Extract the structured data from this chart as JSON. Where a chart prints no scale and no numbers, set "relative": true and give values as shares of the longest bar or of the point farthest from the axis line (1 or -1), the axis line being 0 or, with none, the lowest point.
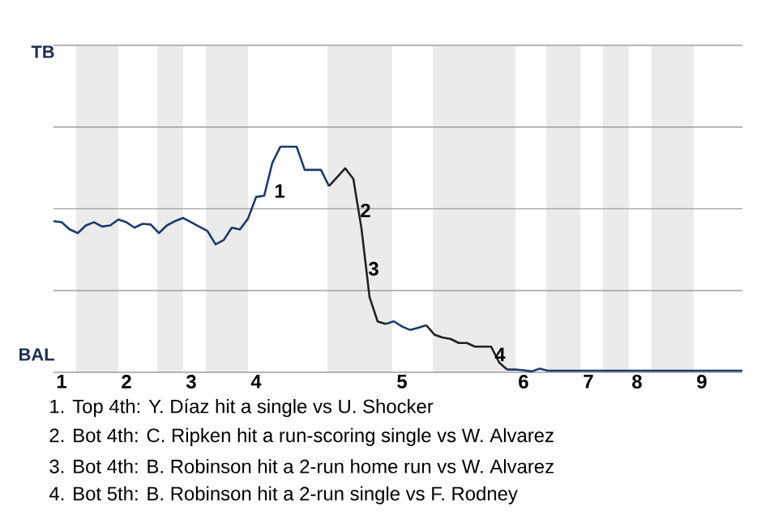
{
  "chart_data": {
    "type": "line",
    "relative": true,
    "categories": [
      null,
      "1",
      null,
      null,
      null,
      null,
      null,
      null,
      null,
      "2",
      null,
      null,
      null,
      null,
      null,
      null,
      null,
      "3",
      null,
      null,
      null,
      null,
      null,
      null,
      null,
      "4",
      null,
      null,
      null,
      null,
      null,
      null,
      null,
      null,
      null,
      null,
      null,
      null,
      null,
      null,
      null,
      null,
      null,
      "5",
      null,
      null,
      null,
      null,
      null,
      null,
      null,
      null,
      null,
      null,
      null,
      null,
      null,
      null,
      "6",
      null,
      null,
      null,
      null,
      null,
      null,
      null,
      "7",
      null,
      null,
      null,
      null,
      null,
      "8",
      null,
      null,
      null,
      null,
      null,
      null,
      null,
      "9",
      null,
      null,
      null,
      null,
      null
    ],
    "marker": "none",
    "line_style": "solid",
    "ref_lines": [
      {
        "axis": "y",
        "value": 0.362,
        "color": "#9f9f9f"
      },
      {
        "axis": "y",
        "value": 0.725,
        "color": "#9f9f9f"
      },
      {
        "axis": "y",
        "value": 1.087,
        "color": "#9f9f9f"
      },
      {
        "axis": "y",
        "value": 1.449,
        "color": "#9f9f9f"
      }
    ],
    "series": [
      {
        "color": "#1b3a6b",
        "values": [
          0.67,
          0.665,
          0.633,
          0.617,
          0.651,
          0.665,
          0.646,
          0.651,
          0.677,
          0.665,
          0.641,
          0.658,
          0.655,
          0.617,
          0.651,
          0.67,
          0.684,
          0.665,
          0.645,
          0.626,
          0.567,
          0.586,
          0.641,
          0.633,
          0.681,
          0.777,
          0.783,
          0.928,
          1,
          1,
          1,
          0.897,
          0.897,
          0.897,
          0.825,
          null,
          null,
          null,
          null,
          null,
          null,
          null,
          null,
          null,
          null,
          null,
          null,
          null,
          null,
          null,
          null,
          null,
          null,
          null,
          null,
          null,
          null,
          null,
          null,
          null,
          null,
          null,
          null,
          null,
          null,
          null,
          null,
          null,
          null,
          null,
          null,
          null,
          null,
          null,
          null,
          null,
          null,
          null,
          null,
          null,
          null,
          null,
          null,
          null,
          null,
          null
        ]
      },
      {
        "color": "#222222",
        "values": [
          null,
          null,
          null,
          null,
          null,
          null,
          null,
          null,
          null,
          null,
          null,
          null,
          null,
          null,
          null,
          null,
          null,
          null,
          null,
          null,
          null,
          null,
          null,
          null,
          null,
          null,
          null,
          null,
          null,
          null,
          null,
          null,
          null,
          null,
          0.825,
          0.865,
          0.904,
          0.857,
          0.638,
          0.333,
          0.225,
          0.214,
          null,
          null,
          null,
          null,
          null,
          null,
          null,
          null,
          null,
          null,
          null,
          null,
          null,
          null,
          null,
          null,
          null,
          null,
          null,
          null,
          null,
          null,
          null,
          null,
          null,
          null,
          null,
          null,
          null,
          null,
          null,
          null,
          null,
          null,
          null,
          null,
          null,
          null,
          null,
          null,
          null,
          null,
          null,
          null
        ]
      },
      {
        "color": "#1b3a6b",
        "values": [
          null,
          null,
          null,
          null,
          null,
          null,
          null,
          null,
          null,
          null,
          null,
          null,
          null,
          null,
          null,
          null,
          null,
          null,
          null,
          null,
          null,
          null,
          null,
          null,
          null,
          null,
          null,
          null,
          null,
          null,
          null,
          null,
          null,
          null,
          null,
          null,
          null,
          null,
          null,
          null,
          null,
          0.214,
          0.226,
          0.203,
          0.188,
          0.197,
          0.209,
          null,
          null,
          null,
          null,
          null,
          null,
          null,
          null,
          null,
          null,
          null,
          null,
          null,
          null,
          null,
          null,
          null,
          null,
          null,
          null,
          null,
          null,
          null,
          null,
          null,
          null,
          null,
          null,
          null,
          null,
          null,
          null,
          null,
          null,
          null,
          null,
          null,
          null,
          null
        ]
      },
      {
        "color": "#222222",
        "values": [
          null,
          null,
          null,
          null,
          null,
          null,
          null,
          null,
          null,
          null,
          null,
          null,
          null,
          null,
          null,
          null,
          null,
          null,
          null,
          null,
          null,
          null,
          null,
          null,
          null,
          null,
          null,
          null,
          null,
          null,
          null,
          null,
          null,
          null,
          null,
          null,
          null,
          null,
          null,
          null,
          null,
          null,
          null,
          null,
          null,
          null,
          0.209,
          0.167,
          0.154,
          0.148,
          0.13,
          0.13,
          0.114,
          0.114,
          0.114,
          0.043,
          0.012,
          null,
          null,
          null,
          null,
          null,
          null,
          null,
          null,
          null,
          null,
          null,
          null,
          null,
          null,
          null,
          null,
          null,
          null,
          null,
          null,
          null,
          null,
          null,
          null,
          null,
          null,
          null,
          null,
          null
        ]
      },
      {
        "color": "#1b3a6b",
        "values": [
          null,
          null,
          null,
          null,
          null,
          null,
          null,
          null,
          null,
          null,
          null,
          null,
          null,
          null,
          null,
          null,
          null,
          null,
          null,
          null,
          null,
          null,
          null,
          null,
          null,
          null,
          null,
          null,
          null,
          null,
          null,
          null,
          null,
          null,
          null,
          null,
          null,
          null,
          null,
          null,
          null,
          null,
          null,
          null,
          null,
          null,
          null,
          null,
          null,
          null,
          null,
          null,
          null,
          null,
          null,
          null,
          0.012,
          0.012,
          0.009,
          0.004,
          0.016,
          0.007,
          0.007,
          0.007,
          0.007,
          0.007,
          0.007,
          0.007,
          0.007,
          0.007,
          0.007,
          0.007,
          0.007,
          0.007,
          0.007,
          0.007,
          0.007,
          0.007,
          0.007,
          0.007,
          0.007,
          0.007,
          0.007,
          0.007,
          0.007,
          0.007
        ]
      }
    ],
    "annotations": [
      "TB",
      "BAL",
      "1",
      "2",
      "3",
      "4",
      "1. Top 4th: Y. Díaz hit a single vs U. Shocker",
      "2. Bot 4th: C. Ripken hit a run-scoring single vs W. Alvarez",
      "3. Bot 4th: B. Robinson hit a 2-run home run vs W. Alvarez",
      "4. Bot 5th: B. Robinson hit a 2-run single vs F. Rodney"
    ]
  }
}
